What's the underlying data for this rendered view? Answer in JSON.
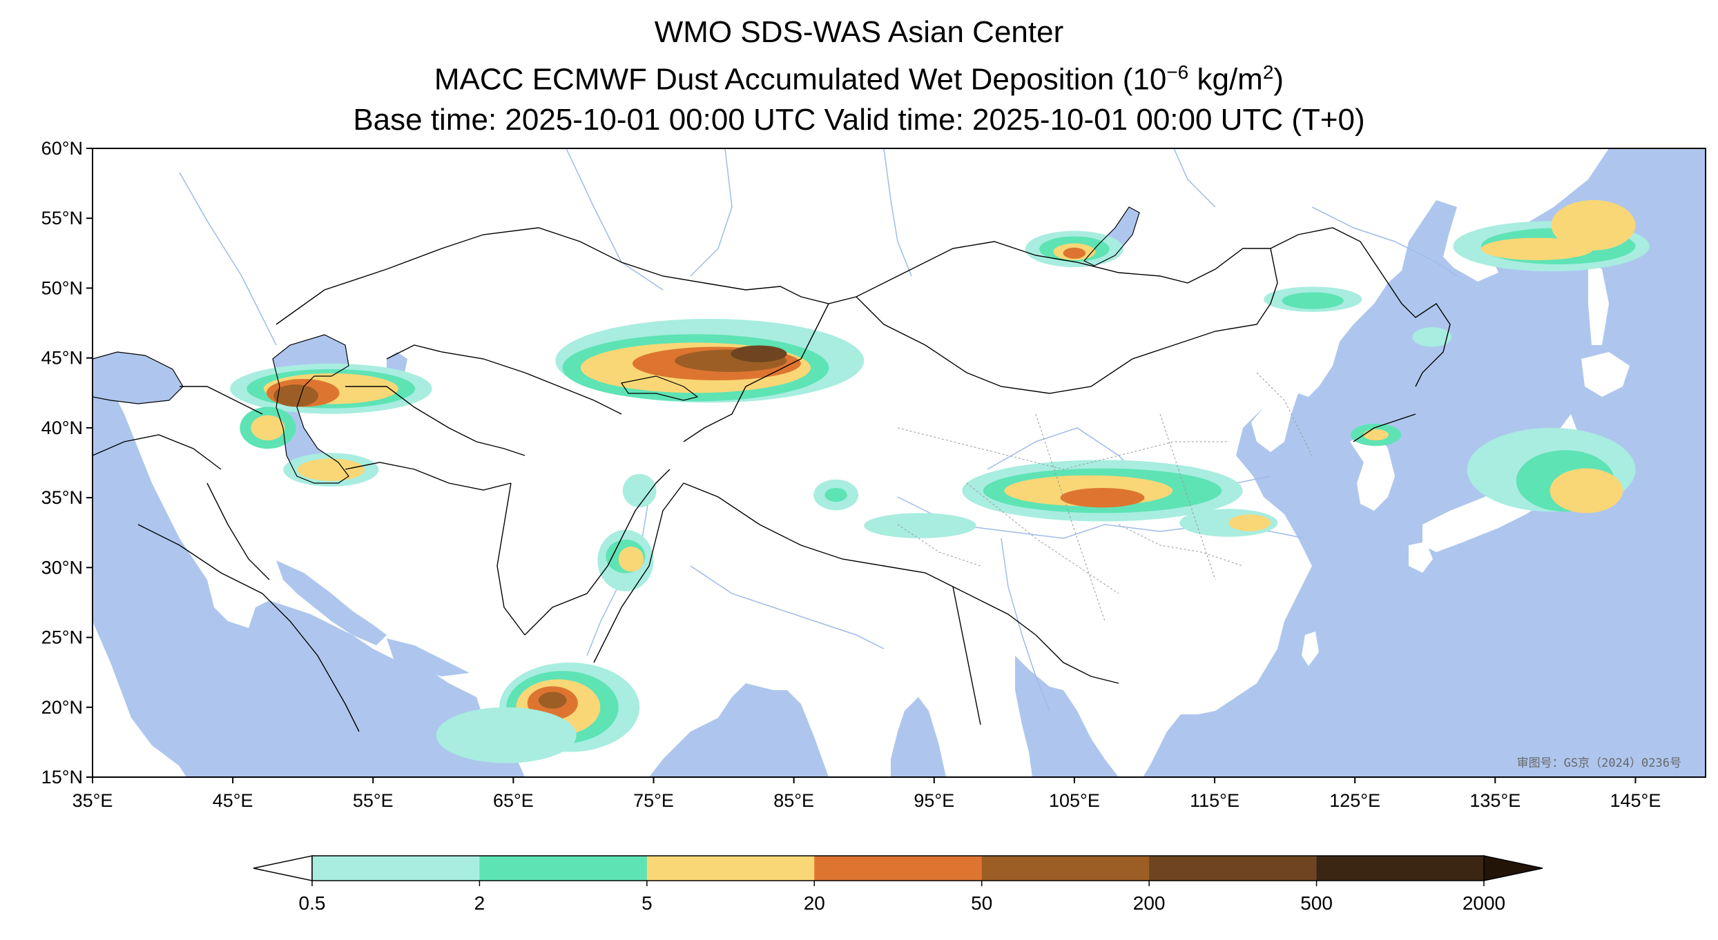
{
  "title": {
    "line1": "WMO SDS-WAS Asian Center",
    "line2_prefix": "MACC ECMWF Dust Accumulated Wet Deposition (10",
    "line2_exp": "−6",
    "line2_mid": " kg/m",
    "line2_exp2": "2",
    "line2_suffix": ")",
    "line3": "Base time: 2025-10-01 00:00 UTC Valid time: 2025-10-01 00:00 UTC (T+0)"
  },
  "watermark": "审图号：GS京（2024）0236号",
  "map": {
    "lon_range": [
      35,
      150
    ],
    "lat_range": [
      15,
      60
    ],
    "lon_ticks": [
      "35°E",
      "45°E",
      "55°E",
      "65°E",
      "75°E",
      "85°E",
      "95°E",
      "105°E",
      "115°E",
      "125°E",
      "135°E",
      "145°E"
    ],
    "lat_ticks": [
      "60°N",
      "55°N",
      "50°N",
      "45°N",
      "40°N",
      "35°N",
      "30°N",
      "25°N",
      "20°N",
      "15°N"
    ],
    "colors": {
      "ocean": "#aec6ee",
      "land": "#ffffff",
      "river": "#9fbbe8",
      "border": "#000000"
    },
    "dust_blobs": [
      {
        "lon": 52,
        "lat": 42.8,
        "rx": 7.2,
        "ry": 1.8,
        "level": 0
      },
      {
        "lon": 52,
        "lat": 42.8,
        "rx": 6.0,
        "ry": 1.4,
        "level": 1
      },
      {
        "lon": 52,
        "lat": 42.8,
        "rx": 4.8,
        "ry": 1.1,
        "level": 2
      },
      {
        "lon": 50,
        "lat": 42.5,
        "rx": 2.6,
        "ry": 1.0,
        "level": 3
      },
      {
        "lon": 49.5,
        "lat": 42.3,
        "rx": 1.6,
        "ry": 0.8,
        "level": 4
      },
      {
        "lon": 52,
        "lat": 37.0,
        "rx": 3.4,
        "ry": 1.2,
        "level": 0
      },
      {
        "lon": 52,
        "lat": 37.0,
        "rx": 2.4,
        "ry": 0.8,
        "level": 2
      },
      {
        "lon": 47.5,
        "lat": 40.0,
        "rx": 2.0,
        "ry": 1.5,
        "level": 1
      },
      {
        "lon": 47.5,
        "lat": 40.0,
        "rx": 1.2,
        "ry": 0.9,
        "level": 2
      },
      {
        "lon": 79,
        "lat": 44.8,
        "rx": 11.0,
        "ry": 3.0,
        "level": 0
      },
      {
        "lon": 78,
        "lat": 44.3,
        "rx": 9.5,
        "ry": 2.4,
        "level": 1
      },
      {
        "lon": 78,
        "lat": 44.3,
        "rx": 8.2,
        "ry": 1.8,
        "level": 2
      },
      {
        "lon": 79.5,
        "lat": 44.6,
        "rx": 6.0,
        "ry": 1.2,
        "level": 3
      },
      {
        "lon": 80.5,
        "lat": 44.8,
        "rx": 4.0,
        "ry": 0.8,
        "level": 4
      },
      {
        "lon": 82.5,
        "lat": 45.3,
        "rx": 2.0,
        "ry": 0.6,
        "level": 5
      },
      {
        "lon": 105,
        "lat": 52.8,
        "rx": 3.5,
        "ry": 1.3,
        "level": 0
      },
      {
        "lon": 105,
        "lat": 52.8,
        "rx": 2.5,
        "ry": 0.9,
        "level": 1
      },
      {
        "lon": 105,
        "lat": 52.6,
        "rx": 1.5,
        "ry": 0.6,
        "level": 2
      },
      {
        "lon": 105,
        "lat": 52.5,
        "rx": 0.8,
        "ry": 0.4,
        "level": 3
      },
      {
        "lon": 107,
        "lat": 35.5,
        "rx": 10.0,
        "ry": 2.2,
        "level": 0
      },
      {
        "lon": 107,
        "lat": 35.5,
        "rx": 8.5,
        "ry": 1.6,
        "level": 1
      },
      {
        "lon": 106,
        "lat": 35.5,
        "rx": 6.0,
        "ry": 1.1,
        "level": 2
      },
      {
        "lon": 107,
        "lat": 35.0,
        "rx": 3.0,
        "ry": 0.7,
        "level": 3
      },
      {
        "lon": 116,
        "lat": 33.2,
        "rx": 3.5,
        "ry": 1.0,
        "level": 0
      },
      {
        "lon": 117.5,
        "lat": 33.2,
        "rx": 1.5,
        "ry": 0.6,
        "level": 2
      },
      {
        "lon": 94,
        "lat": 33.0,
        "rx": 4.0,
        "ry": 0.9,
        "level": 0
      },
      {
        "lon": 88,
        "lat": 35.2,
        "rx": 1.6,
        "ry": 1.1,
        "level": 0
      },
      {
        "lon": 88,
        "lat": 35.2,
        "rx": 0.8,
        "ry": 0.5,
        "level": 1
      },
      {
        "lon": 73,
        "lat": 30.5,
        "rx": 2.0,
        "ry": 2.2,
        "level": 0
      },
      {
        "lon": 73,
        "lat": 30.8,
        "rx": 1.4,
        "ry": 1.2,
        "level": 1
      },
      {
        "lon": 73.4,
        "lat": 30.6,
        "rx": 0.9,
        "ry": 0.9,
        "level": 2
      },
      {
        "lon": 74,
        "lat": 35.5,
        "rx": 1.2,
        "ry": 1.2,
        "level": 0
      },
      {
        "lon": 69,
        "lat": 20.0,
        "rx": 5.0,
        "ry": 3.2,
        "level": 0
      },
      {
        "lon": 68.5,
        "lat": 20.0,
        "rx": 4.0,
        "ry": 2.6,
        "level": 1
      },
      {
        "lon": 68.2,
        "lat": 20.0,
        "rx": 3.0,
        "ry": 2.0,
        "level": 2
      },
      {
        "lon": 67.8,
        "lat": 20.3,
        "rx": 1.8,
        "ry": 1.2,
        "level": 3
      },
      {
        "lon": 67.8,
        "lat": 20.5,
        "rx": 1.0,
        "ry": 0.6,
        "level": 4
      },
      {
        "lon": 64.5,
        "lat": 18.0,
        "rx": 5.0,
        "ry": 2.0,
        "level": 0
      },
      {
        "lon": 139,
        "lat": 37.0,
        "rx": 6.0,
        "ry": 3.0,
        "level": 0
      },
      {
        "lon": 140,
        "lat": 36.2,
        "rx": 3.5,
        "ry": 2.2,
        "level": 1
      },
      {
        "lon": 141.5,
        "lat": 35.5,
        "rx": 2.6,
        "ry": 1.6,
        "level": 2
      },
      {
        "lon": 139,
        "lat": 53.0,
        "rx": 7.0,
        "ry": 1.8,
        "level": 0
      },
      {
        "lon": 139.5,
        "lat": 53.0,
        "rx": 5.5,
        "ry": 1.3,
        "level": 1
      },
      {
        "lon": 138,
        "lat": 52.8,
        "rx": 4.0,
        "ry": 0.8,
        "level": 2
      },
      {
        "lon": 142,
        "lat": 54.5,
        "rx": 3.0,
        "ry": 1.8,
        "level": 2
      },
      {
        "lon": 122,
        "lat": 49.2,
        "rx": 3.5,
        "ry": 0.9,
        "level": 0
      },
      {
        "lon": 122,
        "lat": 49.1,
        "rx": 2.2,
        "ry": 0.6,
        "level": 1
      },
      {
        "lon": 126.5,
        "lat": 39.5,
        "rx": 1.8,
        "ry": 0.8,
        "level": 1
      },
      {
        "lon": 126.5,
        "lat": 39.5,
        "rx": 0.9,
        "ry": 0.4,
        "level": 2
      },
      {
        "lon": 130.5,
        "lat": 46.5,
        "rx": 1.4,
        "ry": 0.7,
        "level": 0
      }
    ]
  },
  "colorbar": {
    "colors": [
      "#a8ede0",
      "#5ee3b5",
      "#f9d776",
      "#dd7531",
      "#9d5e25",
      "#6e4520",
      "#3b2614"
    ],
    "under_color": "#ffffff",
    "over_color": "#231408",
    "labels": [
      "0.5",
      "2",
      "5",
      "20",
      "50",
      "200",
      "500",
      "2000"
    ]
  }
}
